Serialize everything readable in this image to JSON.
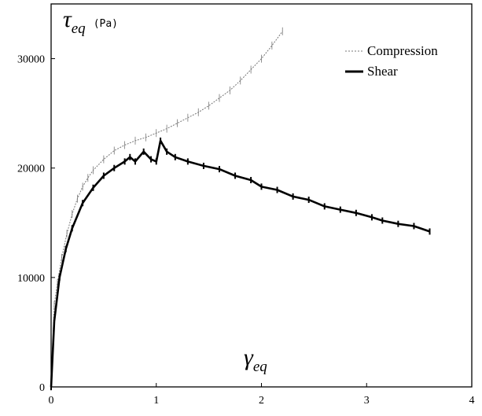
{
  "chart_data": {
    "type": "line",
    "xlim": [
      0,
      4
    ],
    "ylim": [
      0,
      35000
    ],
    "x_ticks": [
      0,
      1,
      2,
      3,
      4
    ],
    "y_ticks": [
      0,
      10000,
      20000,
      30000
    ],
    "ylabel": {
      "symbol": "τ",
      "subscript": "eq",
      "unit": "(Pa)"
    },
    "xlabel": {
      "symbol": "γ",
      "subscript": "eq"
    },
    "grid": false,
    "legend_position": "top-right",
    "series": [
      {
        "name": "Compression",
        "style": "thin-dotted",
        "color": "#777777",
        "x": [
          0,
          0.03,
          0.06,
          0.1,
          0.15,
          0.2,
          0.25,
          0.3,
          0.35,
          0.4,
          0.5,
          0.6,
          0.7,
          0.8,
          0.9,
          1.0,
          1.1,
          1.2,
          1.3,
          1.4,
          1.5,
          1.6,
          1.7,
          1.8,
          1.9,
          2.0,
          2.1,
          2.2
        ],
        "y": [
          0,
          7500,
          9500,
          11800,
          14000,
          15800,
          17200,
          18300,
          19100,
          19800,
          20800,
          21600,
          22100,
          22500,
          22800,
          23200,
          23600,
          24100,
          24600,
          25100,
          25700,
          26400,
          27100,
          28000,
          29000,
          30000,
          31200,
          32500
        ]
      },
      {
        "name": "Shear",
        "style": "thick-solid",
        "color": "#000000",
        "x": [
          0,
          0.03,
          0.08,
          0.14,
          0.2,
          0.3,
          0.4,
          0.5,
          0.6,
          0.7,
          0.75,
          0.8,
          0.88,
          0.95,
          1.0,
          1.04,
          1.1,
          1.18,
          1.3,
          1.45,
          1.6,
          1.75,
          1.9,
          2.0,
          2.15,
          2.3,
          2.45,
          2.6,
          2.75,
          2.9,
          3.05,
          3.15,
          3.3,
          3.45,
          3.6
        ],
        "y": [
          0,
          6000,
          10000,
          12600,
          14500,
          16800,
          18200,
          19300,
          20000,
          20600,
          21000,
          20600,
          21500,
          20800,
          20600,
          22500,
          21500,
          21000,
          20600,
          20200,
          19900,
          19300,
          18900,
          18300,
          18000,
          17400,
          17100,
          16500,
          16200,
          15900,
          15500,
          15200,
          14900,
          14700,
          14200
        ]
      }
    ]
  }
}
